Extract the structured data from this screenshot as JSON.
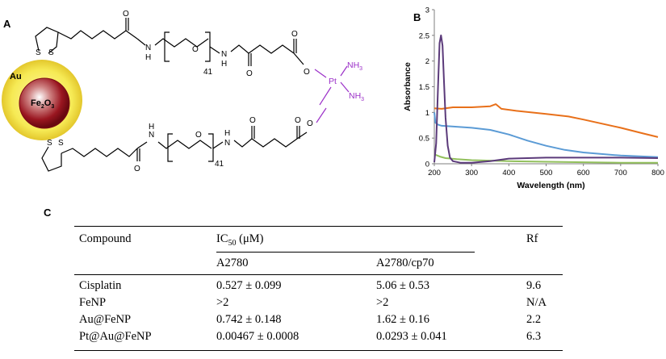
{
  "panel_a": {
    "label": "A",
    "nanoparticle": {
      "shell": "Au",
      "core": "Fe",
      "core_sub1": "2",
      "core_mid": "O",
      "core_sub2": "3"
    },
    "atoms": {
      "S": "S",
      "N": "N",
      "H": "H",
      "O": "O",
      "Pt": "Pt",
      "NH3": "NH",
      "NH3_sub": "3",
      "peg_repeat": "41"
    },
    "colors": {
      "pt_complex": "#9b30c8",
      "au_shell": "#f4e84a",
      "fe_core": "#8a0a14"
    }
  },
  "panel_b": {
    "label": "B"
  },
  "chart_data": {
    "type": "line",
    "title": "",
    "xlabel": "Wavelength (nm)",
    "ylabel": "Absorbance",
    "xlim": [
      200,
      800
    ],
    "ylim": [
      0,
      3
    ],
    "xticks": [
      "200",
      "300",
      "400",
      "500",
      "600",
      "700",
      "800"
    ],
    "yticks": [
      "0",
      "0.5",
      "1",
      "1.5",
      "2",
      "2.5",
      "3"
    ],
    "series": [
      {
        "name": "orange",
        "color": "#e8701a",
        "x": [
          200,
          220,
          250,
          300,
          350,
          365,
          380,
          420,
          500,
          560,
          600,
          700,
          760,
          800
        ],
        "y": [
          1.08,
          1.07,
          1.1,
          1.1,
          1.12,
          1.16,
          1.07,
          1.03,
          0.97,
          0.92,
          0.86,
          0.7,
          0.59,
          0.52
        ]
      },
      {
        "name": "blue",
        "color": "#5b9bd5",
        "x": [
          200,
          203,
          210,
          220,
          240,
          300,
          350,
          400,
          450,
          500,
          550,
          600,
          700,
          800
        ],
        "y": [
          1.0,
          0.8,
          0.76,
          0.74,
          0.73,
          0.7,
          0.66,
          0.57,
          0.45,
          0.35,
          0.27,
          0.22,
          0.16,
          0.13
        ]
      },
      {
        "name": "green",
        "color": "#92c05c",
        "x": [
          200,
          205,
          215,
          230,
          260,
          300,
          400,
          500,
          600,
          700,
          800
        ],
        "y": [
          0.18,
          0.17,
          0.14,
          0.11,
          0.09,
          0.07,
          0.05,
          0.04,
          0.03,
          0.02,
          0.02
        ]
      },
      {
        "name": "purple",
        "color": "#5b3a7a",
        "x": [
          200,
          205,
          210,
          214,
          218,
          222,
          226,
          230,
          236,
          242,
          250,
          270,
          300,
          350,
          400,
          500,
          600,
          700,
          800
        ],
        "y": [
          0.03,
          0.4,
          1.5,
          2.35,
          2.5,
          2.3,
          1.6,
          0.9,
          0.35,
          0.12,
          0.05,
          0.02,
          0.02,
          0.05,
          0.1,
          0.12,
          0.12,
          0.12,
          0.11
        ]
      }
    ]
  },
  "panel_c": {
    "label": "C",
    "headers": {
      "compound": "Compound",
      "ic50_main": "IC",
      "ic50_sub": "50",
      "ic50_unit": "(μM)",
      "rf": "Rf",
      "col1": "A2780",
      "col2": "A2780/cp70"
    },
    "rows": [
      {
        "compound": "Cisplatin",
        "a2780": "0.527 ± 0.099",
        "cp70": "5.06 ± 0.53",
        "rf": "9.6"
      },
      {
        "compound": "FeNP",
        "a2780": ">2",
        "cp70": ">2",
        "rf": "N/A"
      },
      {
        "compound": "Au@FeNP",
        "a2780": "0.742 ± 0.148",
        "cp70": "1.62 ± 0.16",
        "rf": "2.2"
      },
      {
        "compound": "Pt@Au@FeNP",
        "a2780": "0.00467 ± 0.0008",
        "cp70": "0.0293 ± 0.041",
        "rf": "6.3"
      }
    ]
  }
}
